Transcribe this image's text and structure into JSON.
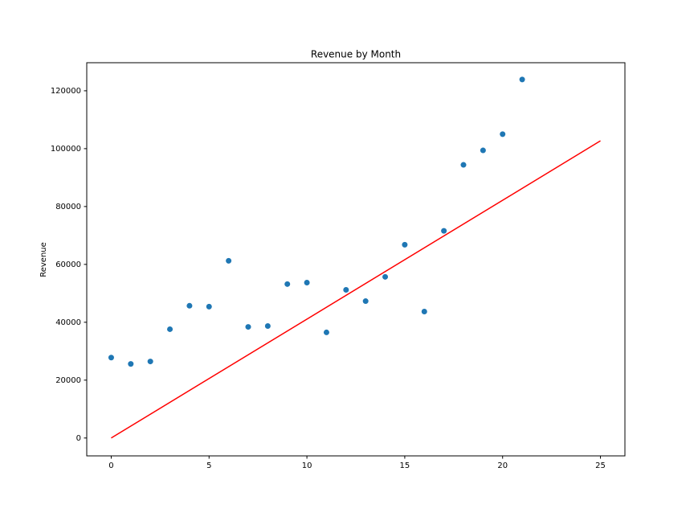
{
  "chart_data": {
    "type": "scatter",
    "title": "Revenue by Month",
    "ylabel": "Revenue",
    "series": [
      {
        "type": "scatter",
        "color": "#1f77b4",
        "x": [
          0,
          1,
          2,
          3,
          4,
          5,
          6,
          7,
          8,
          9,
          10,
          11,
          12,
          13,
          14,
          15,
          16,
          17,
          18,
          19,
          20,
          21
        ],
        "values": [
          27800,
          25600,
          26450,
          37600,
          45700,
          45400,
          61250,
          38400,
          38700,
          53200,
          53700,
          36500,
          51200,
          47300,
          55700,
          66800,
          43700,
          71600,
          94400,
          99400,
          105000,
          123900
        ]
      },
      {
        "type": "line",
        "color": "#ff0000",
        "x": [
          0,
          25
        ],
        "values": [
          0,
          102700
        ]
      }
    ],
    "xlim": [
      -1.25,
      26.25
    ],
    "ylim": [
      -6175,
      129700
    ],
    "xticks": [
      0,
      5,
      10,
      15,
      20,
      25
    ],
    "yticks": [
      0,
      20000,
      40000,
      60000,
      80000,
      100000,
      120000
    ],
    "grid": false
  }
}
